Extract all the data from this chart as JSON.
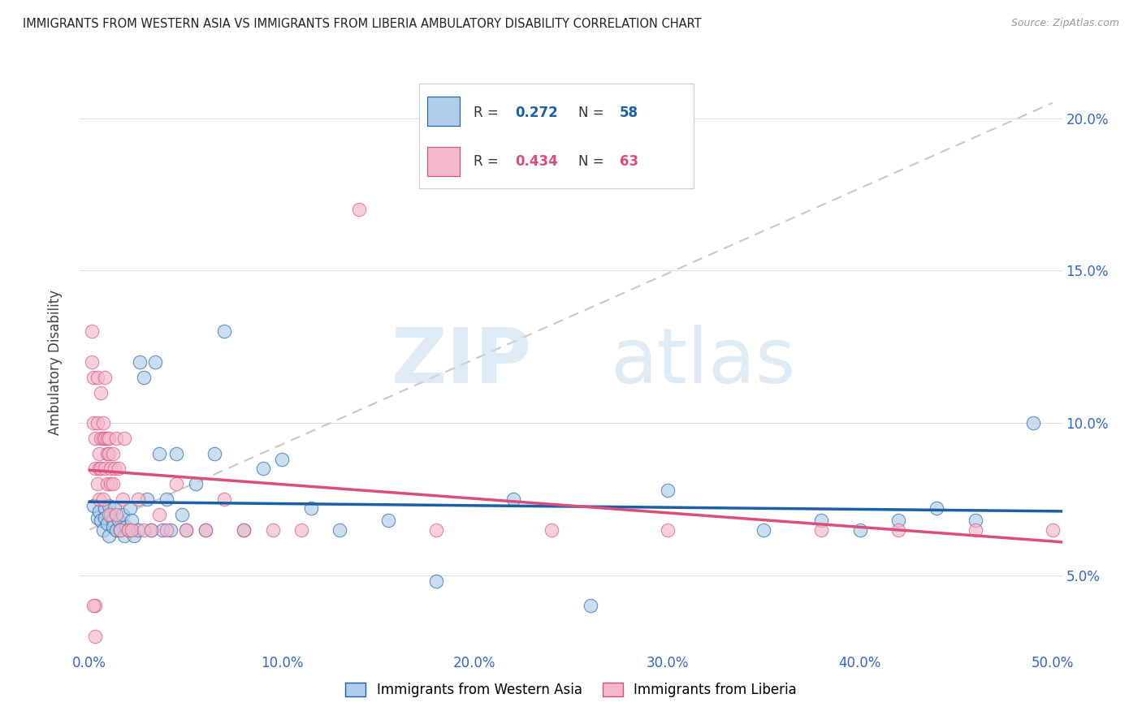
{
  "title": "IMMIGRANTS FROM WESTERN ASIA VS IMMIGRANTS FROM LIBERIA AMBULATORY DISABILITY CORRELATION CHART",
  "source": "Source: ZipAtlas.com",
  "xlabel_blue": "Immigrants from Western Asia",
  "xlabel_pink": "Immigrants from Liberia",
  "ylabel": "Ambulatory Disability",
  "R_blue": 0.272,
  "N_blue": 58,
  "R_pink": 0.434,
  "N_pink": 63,
  "xlim": [
    -0.005,
    0.505
  ],
  "ylim": [
    0.025,
    0.215
  ],
  "yticks": [
    0.05,
    0.1,
    0.15,
    0.2
  ],
  "xticks": [
    0.0,
    0.1,
    0.2,
    0.3,
    0.4,
    0.5
  ],
  "color_blue": "#aecde8",
  "color_pink": "#f4b8cb",
  "color_trendline_blue": "#1a5fa8",
  "color_trendline_pink": "#d94f7a",
  "color_refline": "#c8c8c8",
  "blue_x": [
    0.002,
    0.004,
    0.005,
    0.006,
    0.007,
    0.008,
    0.008,
    0.009,
    0.01,
    0.01,
    0.011,
    0.012,
    0.012,
    0.013,
    0.014,
    0.015,
    0.016,
    0.017,
    0.018,
    0.019,
    0.02,
    0.021,
    0.022,
    0.023,
    0.025,
    0.026,
    0.028,
    0.03,
    0.032,
    0.034,
    0.036,
    0.038,
    0.04,
    0.042,
    0.045,
    0.048,
    0.05,
    0.055,
    0.06,
    0.065,
    0.07,
    0.08,
    0.09,
    0.1,
    0.115,
    0.13,
    0.155,
    0.18,
    0.22,
    0.26,
    0.3,
    0.35,
    0.38,
    0.4,
    0.42,
    0.44,
    0.46,
    0.49
  ],
  "blue_y": [
    0.073,
    0.069,
    0.071,
    0.068,
    0.065,
    0.072,
    0.069,
    0.067,
    0.073,
    0.063,
    0.07,
    0.068,
    0.066,
    0.072,
    0.065,
    0.068,
    0.065,
    0.07,
    0.063,
    0.066,
    0.065,
    0.072,
    0.068,
    0.063,
    0.065,
    0.12,
    0.115,
    0.075,
    0.065,
    0.12,
    0.09,
    0.065,
    0.075,
    0.065,
    0.09,
    0.07,
    0.065,
    0.08,
    0.065,
    0.09,
    0.13,
    0.065,
    0.085,
    0.088,
    0.072,
    0.065,
    0.068,
    0.048,
    0.075,
    0.04,
    0.078,
    0.065,
    0.068,
    0.065,
    0.068,
    0.072,
    0.068,
    0.1
  ],
  "pink_x": [
    0.001,
    0.001,
    0.002,
    0.002,
    0.003,
    0.003,
    0.003,
    0.004,
    0.004,
    0.004,
    0.005,
    0.005,
    0.005,
    0.006,
    0.006,
    0.006,
    0.007,
    0.007,
    0.007,
    0.008,
    0.008,
    0.008,
    0.009,
    0.009,
    0.009,
    0.01,
    0.01,
    0.01,
    0.011,
    0.011,
    0.012,
    0.012,
    0.013,
    0.014,
    0.014,
    0.015,
    0.016,
    0.017,
    0.018,
    0.02,
    0.022,
    0.025,
    0.028,
    0.032,
    0.036,
    0.04,
    0.045,
    0.05,
    0.06,
    0.07,
    0.08,
    0.095,
    0.11,
    0.14,
    0.18,
    0.24,
    0.3,
    0.38,
    0.42,
    0.46,
    0.5,
    0.002,
    0.003
  ],
  "pink_y": [
    0.13,
    0.12,
    0.115,
    0.1,
    0.095,
    0.085,
    0.04,
    0.115,
    0.1,
    0.08,
    0.09,
    0.085,
    0.075,
    0.11,
    0.095,
    0.085,
    0.1,
    0.095,
    0.075,
    0.115,
    0.095,
    0.085,
    0.095,
    0.09,
    0.08,
    0.095,
    0.09,
    0.07,
    0.085,
    0.08,
    0.09,
    0.08,
    0.085,
    0.095,
    0.07,
    0.085,
    0.065,
    0.075,
    0.095,
    0.065,
    0.065,
    0.075,
    0.065,
    0.065,
    0.07,
    0.065,
    0.08,
    0.065,
    0.065,
    0.075,
    0.065,
    0.065,
    0.065,
    0.17,
    0.065,
    0.065,
    0.065,
    0.065,
    0.065,
    0.065,
    0.065,
    0.04,
    0.03
  ],
  "watermark_zip": "ZIP",
  "watermark_atlas": "atlas",
  "figsize": [
    14.06,
    8.92
  ]
}
